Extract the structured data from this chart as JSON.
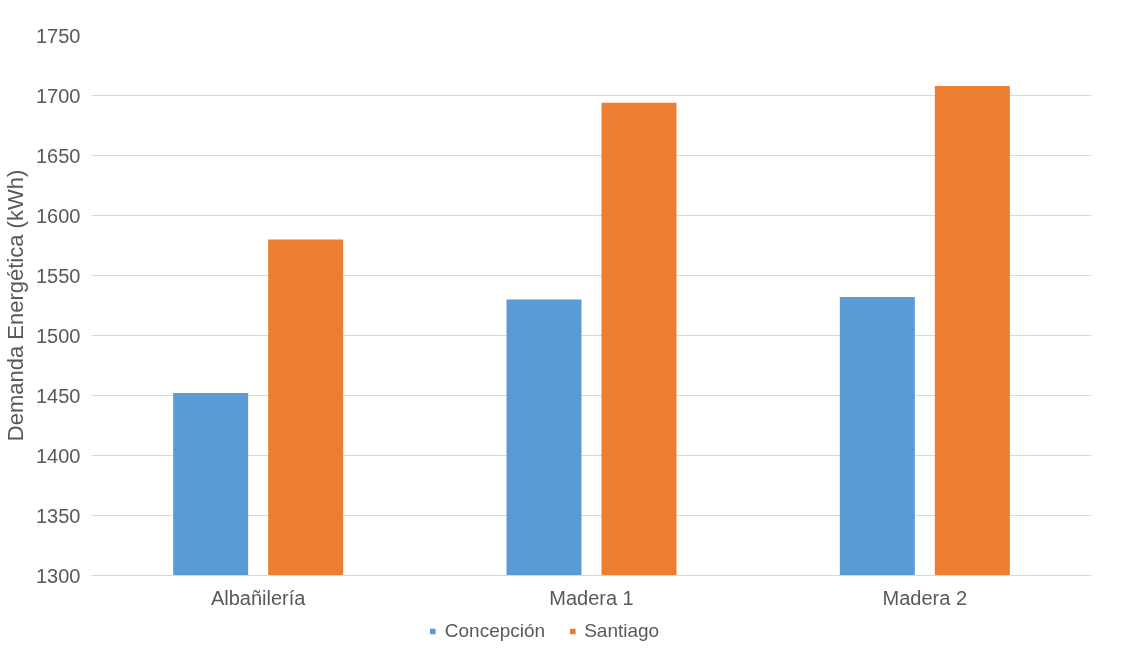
{
  "chart_data": {
    "type": "bar",
    "ylabel": "Demanda Energética (kWh)",
    "categories": [
      "Albañilería",
      "Madera 1",
      "Madera 2"
    ],
    "series": [
      {
        "name": "Concepción",
        "color": "#5b9bd5",
        "values": [
          1452,
          1530,
          1532
        ]
      },
      {
        "name": "Santiago",
        "color": "#ed7d31",
        "values": [
          1580,
          1694,
          1708
        ]
      }
    ],
    "ylim": [
      1300,
      1750
    ],
    "yticks": [
      1300,
      1350,
      1400,
      1450,
      1500,
      1550,
      1600,
      1650,
      1700,
      1750
    ],
    "grid": "y",
    "legend": "bottom"
  }
}
